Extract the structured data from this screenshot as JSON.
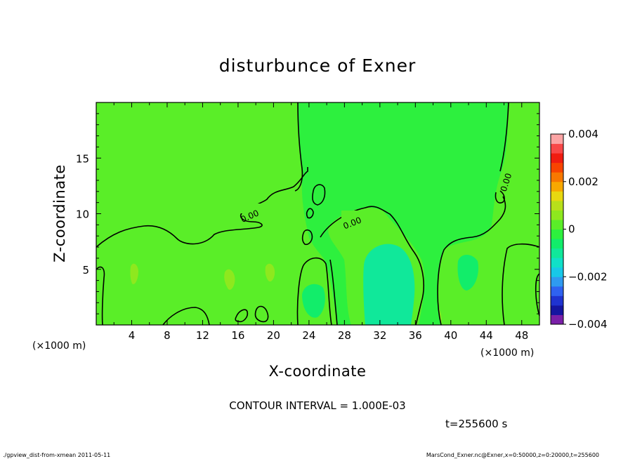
{
  "chart_data": {
    "type": "heatmap",
    "title": "disturbunce of Exner",
    "xlabel": "X-coordinate",
    "ylabel": "Z-coordinate",
    "x_unit": "(×1000 m)",
    "y_unit": "(×1000 m)",
    "xlim": [
      0,
      50
    ],
    "ylim": [
      0,
      20
    ],
    "x_ticks": [
      "4",
      "8",
      "12",
      "16",
      "20",
      "24",
      "28",
      "32",
      "36",
      "40",
      "44",
      "48"
    ],
    "y_ticks": [
      "5",
      "10",
      "15"
    ],
    "colorbar": {
      "range": [
        -0.004,
        0.004
      ],
      "tick_labels": [
        "0.004",
        "0.002",
        "0",
        "−0.002",
        "−0.004"
      ],
      "colors": [
        "#7a1fa8",
        "#1515a0",
        "#1f33d0",
        "#2f62f0",
        "#2f9af0",
        "#17c8e8",
        "#10e0c8",
        "#10e89a",
        "#12ed6a",
        "#2df03e",
        "#5aee28",
        "#8ee81e",
        "#b8e01a",
        "#e8d810",
        "#f8a800",
        "#f87800",
        "#f84400",
        "#f01c10",
        "#f84848",
        "#fca4a4"
      ]
    },
    "background_color": "#5aee28",
    "contour_labels": [
      "0.00",
      "0.00",
      "0.00"
    ],
    "contour_interval_text": "CONTOUR INTERVAL = 1.000E-03",
    "time_label": "t=255600 s"
  },
  "footer": {
    "left": "./gpview_dist-from-xmean  2011-05-11",
    "right": "MarsCond_Exner.nc@Exner,x=0:50000,z=0:20000,t=255600"
  }
}
